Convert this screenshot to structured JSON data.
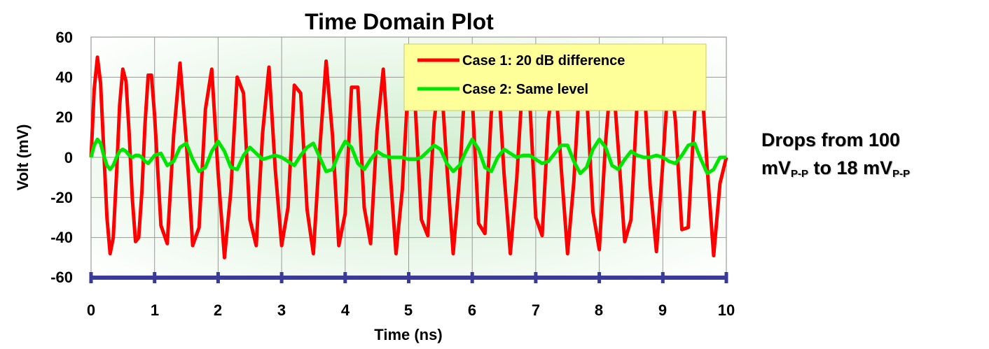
{
  "chart_data": {
    "type": "line",
    "title": "Time Domain Plot",
    "xlabel": "Time (ns)",
    "ylabel": "Volt (mV)",
    "xlim": [
      0,
      10
    ],
    "ylim": [
      -60,
      60
    ],
    "xticks": [
      "0",
      "1",
      "2",
      "3",
      "4",
      "5",
      "6",
      "7",
      "8",
      "9",
      "10"
    ],
    "yticks": [
      "60",
      "40",
      "20",
      "0",
      "-20",
      "-40",
      "-60"
    ],
    "grid": true,
    "legend_position": "top-right",
    "series": [
      {
        "name": "Case 1: 20 dB difference",
        "color": "#ff0000",
        "description": "Two-tone beating sinusoid, period ~0.476 ns, peak amplitude ~50 mV",
        "x": [
          0,
          0.05,
          0.1,
          0.15,
          0.2,
          0.25,
          0.3,
          0.35,
          0.4,
          0.45,
          0.5,
          0.55,
          0.6,
          0.65,
          0.7,
          0.75,
          0.8,
          0.85,
          0.9,
          0.95,
          1.0,
          1.1,
          1.2,
          1.3,
          1.4,
          1.5,
          1.6,
          1.7,
          1.8,
          1.9,
          2.0,
          2.1,
          2.2,
          2.3,
          2.4,
          2.5,
          2.6,
          2.7,
          2.8,
          2.9,
          3.0,
          3.1,
          3.2,
          3.3,
          3.4,
          3.5,
          3.6,
          3.7,
          3.8,
          3.9,
          4.0,
          4.1,
          4.2,
          4.3,
          4.4,
          4.5,
          4.6,
          4.7,
          4.8,
          4.9,
          5.0,
          5.1,
          5.2,
          5.3,
          5.4,
          5.5,
          5.6,
          5.7,
          5.8,
          5.9,
          6.0,
          6.1,
          6.2,
          6.3,
          6.4,
          6.5,
          6.6,
          6.7,
          6.8,
          6.9,
          7.0,
          7.1,
          7.2,
          7.3,
          7.4,
          7.5,
          7.6,
          7.7,
          7.8,
          7.9,
          8.0,
          8.1,
          8.2,
          8.3,
          8.4,
          8.5,
          8.6,
          8.7,
          8.8,
          8.9,
          9.0,
          9.1,
          9.2,
          9.3,
          9.4,
          9.5,
          9.6,
          9.7,
          9.8,
          9.9,
          10.0
        ],
        "y": [
          0,
          34,
          50,
          37,
          4,
          -30,
          -48,
          -40,
          -9,
          26,
          44,
          38,
          12,
          -21,
          -42,
          -40,
          -17,
          17,
          41,
          41,
          21,
          -34,
          -43,
          11,
          47,
          8,
          -44,
          -35,
          24,
          44,
          -8,
          -50,
          -17,
          40,
          32,
          -31,
          -44,
          12,
          45,
          -6,
          -44,
          -25,
          36,
          32,
          -26,
          -48,
          4,
          48,
          11,
          -44,
          -28,
          35,
          35,
          -25,
          -43,
          13,
          44,
          -4,
          -48,
          -16,
          41,
          27,
          -31,
          -39,
          18,
          45,
          -4,
          -48,
          -10,
          44,
          30,
          -33,
          -38,
          22,
          45,
          -8,
          -48,
          -11,
          42,
          32,
          -30,
          -39,
          19,
          44,
          -5,
          -48,
          -12,
          43,
          32,
          -27,
          -46,
          8,
          47,
          4,
          -42,
          -31,
          30,
          40,
          -14,
          -47,
          -3,
          46,
          18,
          -36,
          -35,
          22,
          44,
          -6,
          -49,
          -13,
          0
        ]
      },
      {
        "name": "Case 2: Same level",
        "color": "#00e600",
        "description": "Small residual beat, peak amplitude ~9 mV",
        "x": [
          0,
          0.05,
          0.1,
          0.15,
          0.2,
          0.25,
          0.3,
          0.35,
          0.4,
          0.45,
          0.5,
          0.55,
          0.6,
          0.65,
          0.7,
          0.75,
          0.8,
          0.85,
          0.9,
          0.95,
          1.0,
          1.1,
          1.2,
          1.3,
          1.4,
          1.5,
          1.6,
          1.7,
          1.8,
          1.9,
          2.0,
          2.1,
          2.2,
          2.3,
          2.4,
          2.5,
          2.6,
          2.7,
          2.8,
          2.9,
          3.0,
          3.1,
          3.2,
          3.3,
          3.4,
          3.5,
          3.6,
          3.7,
          3.8,
          3.9,
          4.0,
          4.1,
          4.2,
          4.3,
          4.4,
          4.5,
          4.6,
          4.7,
          4.8,
          4.9,
          5.0,
          5.1,
          5.2,
          5.3,
          5.4,
          5.5,
          5.6,
          5.7,
          5.8,
          5.9,
          6.0,
          6.1,
          6.2,
          6.3,
          6.4,
          6.5,
          6.6,
          6.7,
          6.8,
          6.9,
          7.0,
          7.1,
          7.2,
          7.3,
          7.4,
          7.5,
          7.6,
          7.7,
          7.8,
          7.9,
          8.0,
          8.1,
          8.2,
          8.3,
          8.4,
          8.5,
          8.6,
          8.7,
          8.8,
          8.9,
          9.0,
          9.1,
          9.2,
          9.3,
          9.4,
          9.5,
          9.6,
          9.7,
          9.8,
          9.9,
          10.0
        ],
        "y": [
          0,
          6,
          9,
          7,
          1,
          -4,
          -6,
          -4,
          0,
          3,
          4,
          3,
          1,
          0,
          1,
          1,
          0,
          -2,
          -3,
          -1,
          1,
          2,
          -4,
          -2,
          5,
          7,
          -1,
          -7,
          -5,
          3,
          8,
          3,
          -5,
          -6,
          1,
          5,
          2,
          -1,
          0,
          1,
          0,
          -2,
          -4,
          1,
          5,
          7,
          0,
          -7,
          -6,
          2,
          8,
          5,
          -3,
          -6,
          -1,
          3,
          1,
          0,
          0,
          0,
          -1,
          -1,
          0,
          3,
          6,
          4,
          -3,
          -7,
          -4,
          3,
          9,
          4,
          -5,
          -7,
          0,
          4,
          2,
          0,
          1,
          1,
          -1,
          -3,
          -2,
          2,
          6,
          6,
          -2,
          -8,
          -5,
          4,
          9,
          5,
          -4,
          -6,
          -1,
          3,
          1,
          0,
          0,
          1,
          0,
          -2,
          -3,
          1,
          6,
          7,
          -1,
          -8,
          -6,
          0,
          0
        ]
      }
    ]
  },
  "annotation": {
    "line1": "Drops from 100",
    "part1": "mV",
    "sub1": "P-P",
    "part2": " to 18 mV",
    "sub2": "P-P"
  }
}
